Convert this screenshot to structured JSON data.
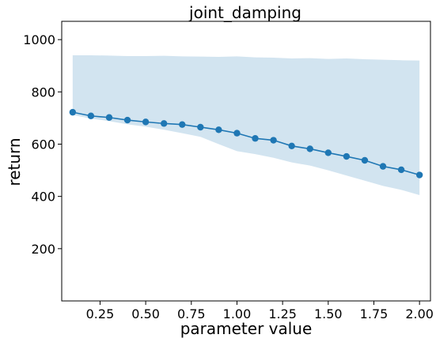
{
  "chart_data": {
    "type": "line",
    "title": "joint_damping",
    "xlabel": "parameter value",
    "ylabel": "return",
    "xlim": [
      0.04,
      2.06
    ],
    "ylim": [
      0,
      1070
    ],
    "xticks": [
      0.25,
      0.5,
      0.75,
      1.0,
      1.25,
      1.5,
      1.75,
      2.0
    ],
    "xtick_labels": [
      "0.25",
      "0.50",
      "0.75",
      "1.00",
      "1.25",
      "1.50",
      "1.75",
      "2.00"
    ],
    "yticks": [
      200,
      400,
      600,
      800,
      1000
    ],
    "ytick_labels": [
      "200",
      "400",
      "600",
      "800",
      "1000"
    ],
    "grid": false,
    "colors": {
      "line": "#1f77b4",
      "band": "#1f77b4",
      "band_opacity": 0.2
    },
    "series": [
      {
        "x": [
          0.1,
          0.2,
          0.3,
          0.4,
          0.5,
          0.6,
          0.7,
          0.8,
          0.9,
          1.0,
          1.1,
          1.2,
          1.3,
          1.4,
          1.5,
          1.6,
          1.7,
          1.8,
          1.9,
          2.0
        ],
        "values": [
          722,
          708,
          702,
          692,
          685,
          679,
          675,
          665,
          655,
          642,
          622,
          615,
          593,
          582,
          567,
          553,
          538,
          515,
          502,
          482
        ],
        "upper": [
          940,
          940,
          939,
          937,
          937,
          938,
          936,
          935,
          934,
          936,
          932,
          931,
          928,
          929,
          926,
          928,
          925,
          923,
          921,
          920
        ],
        "lower": [
          712,
          698,
          688,
          676,
          667,
          655,
          642,
          628,
          600,
          573,
          562,
          548,
          530,
          518,
          500,
          480,
          460,
          440,
          425,
          405
        ]
      }
    ]
  }
}
